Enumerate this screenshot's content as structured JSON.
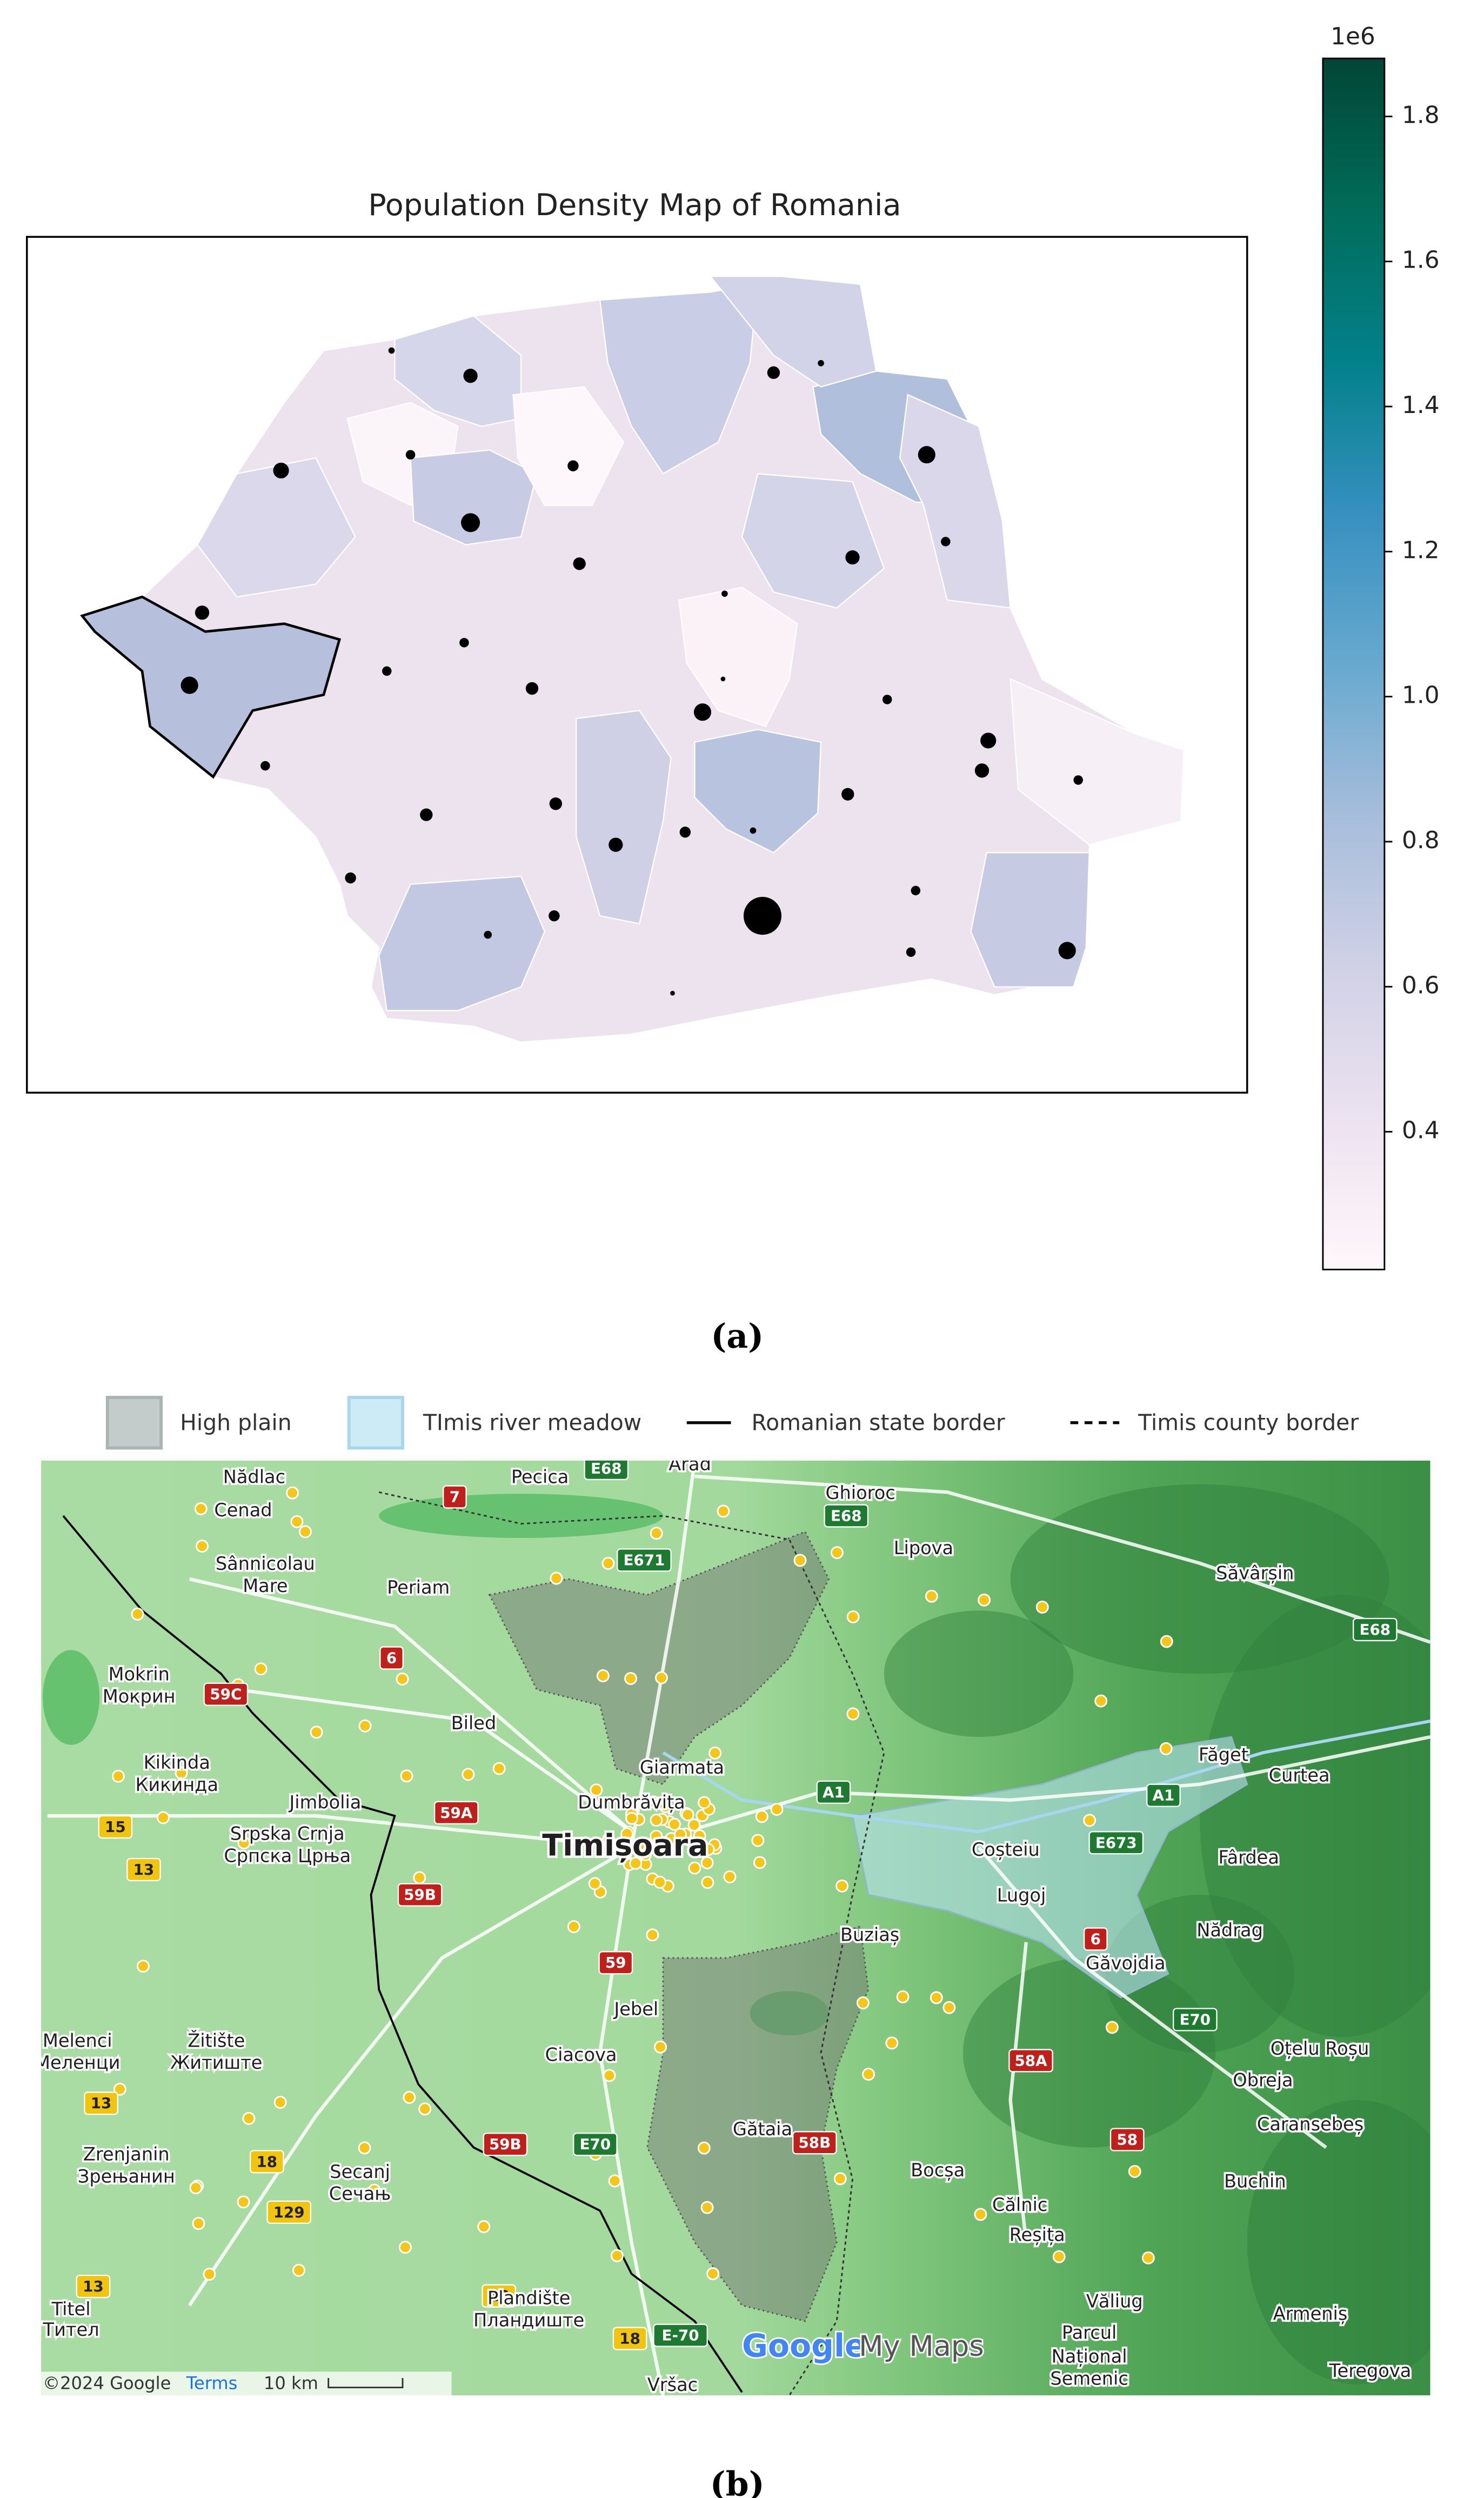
{
  "panel_a": {
    "title": "Population Density Map of Romania",
    "colorbar": {
      "offset_label": "1e6",
      "ylim": [
        0.21,
        1.88
      ],
      "yticks": [
        0.4,
        0.6,
        0.8,
        {
          "value": 1,
          "label": "1.0"
        },
        1.2,
        1.4,
        1.6,
        1.8
      ],
      "colors": [
        "#fff7fb",
        "#ece2f0",
        "#d0d1e6",
        "#a6bddb",
        "#67a9cf",
        "#3690c0",
        "#02818a",
        "#016c59",
        "#014636"
      ]
    },
    "caption": "(a)"
  },
  "panel_b": {
    "legend": [
      "High plain",
      "TImis river meadow",
      "Romanian state border",
      "Timis county border"
    ],
    "place_labels": [
      "Nădlac",
      "Pecica",
      "Arad",
      "Ghioroc",
      "Lipova",
      "Cenad",
      "Sânnicolau",
      "Mare",
      "Periam",
      "Săvârșin",
      "Mokrin",
      "Мокрин",
      "Biled",
      "Kikinda",
      "Кикинда",
      "Jimbolia",
      "Giarmata",
      "Dumbrăvița",
      "Timișoara",
      "Făget",
      "Curtea",
      "Srpska Crnja",
      "Српска Црња",
      "Coșteiu",
      "Lugoj",
      "Fârdea",
      "Buziaș",
      "Nădrag",
      "Găvojdia",
      "Jebel",
      "Ciacova",
      "Melenci",
      "Меленци",
      "Žitište",
      "Житиште",
      "Oțelu Roșu",
      "Obreja",
      "Gătaia",
      "Caransebeș",
      "Zrenjanin",
      "Зрењанин",
      "Secanj",
      "Сечањ",
      "Bocșa",
      "Buchin",
      "Călnic",
      "Reșița",
      "Văliug",
      "Armeniș",
      "Titel",
      "Тител",
      "Plandište",
      "Пландиште",
      "Vršac",
      "Parcul",
      "Național",
      "Semenic",
      "Teregova"
    ],
    "road_shields": [
      "7",
      "E68",
      "E68",
      "E671",
      "E68",
      "6",
      "59C",
      "59A",
      "A1",
      "A1",
      "E673",
      "59B",
      "59",
      "6",
      "E70",
      "58A",
      "58",
      "58B",
      "15",
      "13",
      "13",
      "18",
      "129",
      "13",
      "18",
      "18",
      "E-70",
      "59B",
      "E70"
    ],
    "attribution": [
      "©2024 Google",
      "Terms",
      "10 km"
    ],
    "logo": [
      "Google",
      "My Maps"
    ],
    "caption": "(b)"
  }
}
